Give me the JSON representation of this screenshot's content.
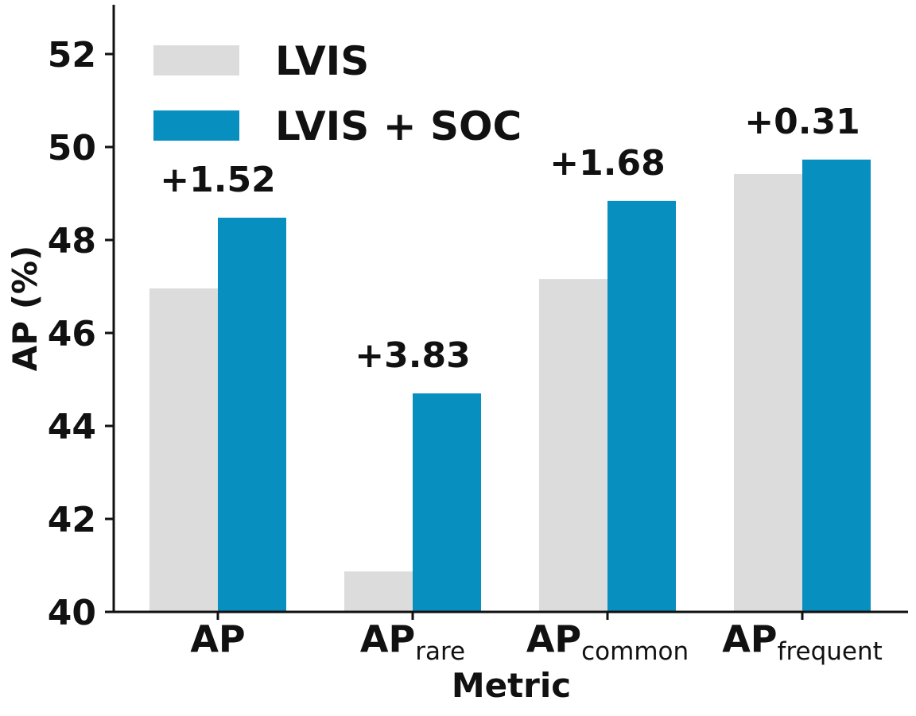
{
  "chart_data": {
    "type": "bar",
    "title": "",
    "xlabel": "Metric",
    "ylabel": "AP (%)",
    "ylim": [
      40,
      53
    ],
    "yticks": [
      "40",
      "42",
      "44",
      "46",
      "48",
      "50",
      "52"
    ],
    "categories": [
      {
        "base": "AP",
        "sub": ""
      },
      {
        "base": "AP",
        "sub": "rare"
      },
      {
        "base": "AP",
        "sub": "common"
      },
      {
        "base": "AP",
        "sub": "frequent"
      }
    ],
    "series": [
      {
        "name": "LVIS",
        "color": "#dcdcdc",
        "values": [
          46.96,
          40.87,
          47.16,
          49.42
        ]
      },
      {
        "name": "LVIS + SOC",
        "color": "#078fc0",
        "values": [
          48.48,
          44.7,
          48.84,
          49.73
        ]
      }
    ],
    "annotations": [
      "+1.52",
      "+3.83",
      "+1.68",
      "+0.31"
    ],
    "legend": {
      "position": "top-left"
    },
    "grid": false
  }
}
